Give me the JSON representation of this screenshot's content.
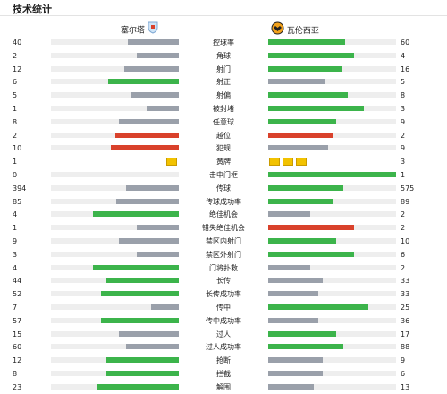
{
  "page": {
    "title": "技术统计"
  },
  "teams": {
    "home": "塞尔塔",
    "away": "瓦伦西亚"
  },
  "colors": {
    "win": "#3cb44b",
    "lose": "#9aa0aa",
    "bad": "#d9412b",
    "yellow": "#f2c200"
  },
  "stats": [
    {
      "label": "控球率",
      "home": 40,
      "away": 60,
      "hf": 0.4,
      "af": 0.6
    },
    {
      "label": "角球",
      "home": 2,
      "away": 4,
      "hf": 0.33,
      "af": 0.67
    },
    {
      "label": "射门",
      "home": 12,
      "away": 16,
      "hf": 0.43,
      "af": 0.57
    },
    {
      "label": "射正",
      "home": 6,
      "away": 5,
      "hf": 0.55,
      "af": 0.45
    },
    {
      "label": "射偏",
      "home": 5,
      "away": 8,
      "hf": 0.38,
      "af": 0.62
    },
    {
      "label": "被封堵",
      "home": 1,
      "away": 3,
      "hf": 0.25,
      "af": 0.75
    },
    {
      "label": "任意球",
      "home": 8,
      "away": 9,
      "hf": 0.47,
      "af": 0.53
    },
    {
      "label": "越位",
      "home": 2,
      "away": 2,
      "hf": 0.5,
      "af": 0.5
    },
    {
      "label": "犯规",
      "home": 10,
      "away": 9,
      "hf": 0.53,
      "af": 0.47
    },
    {
      "label": "黄牌",
      "home": 1,
      "away": 3,
      "cards": true
    },
    {
      "label": "击中门框",
      "home": 0,
      "away": 1,
      "hf": 0,
      "af": 1
    },
    {
      "label": "传球",
      "home": 394,
      "away": 575,
      "hf": 0.41,
      "af": 0.59
    },
    {
      "label": "传球成功率",
      "home": 85,
      "away": 89,
      "hf": 0.49,
      "af": 0.51
    },
    {
      "label": "绝佳机会",
      "home": 4,
      "away": 2,
      "hf": 0.67,
      "af": 0.33
    },
    {
      "label": "错失绝佳机会",
      "home": 1,
      "away": 2,
      "hf": 0.33,
      "af": 0.67
    },
    {
      "label": "禁区内射门",
      "home": 9,
      "away": 10,
      "hf": 0.47,
      "af": 0.53
    },
    {
      "label": "禁区外射门",
      "home": 3,
      "away": 6,
      "hf": 0.33,
      "af": 0.67
    },
    {
      "label": "门将扑救",
      "home": 4,
      "away": 2,
      "hf": 0.67,
      "af": 0.33
    },
    {
      "label": "长传",
      "home": 44,
      "away": 33,
      "hf": 0.57,
      "af": 0.43
    },
    {
      "label": "长传成功率",
      "home": 52,
      "away": 33,
      "hf": 0.61,
      "af": 0.39
    },
    {
      "label": "传中",
      "home": 7,
      "away": 25,
      "hf": 0.22,
      "af": 0.78
    },
    {
      "label": "传中成功率",
      "home": 57,
      "away": 36,
      "hf": 0.61,
      "af": 0.39
    },
    {
      "label": "过人",
      "home": 15,
      "away": 17,
      "hf": 0.47,
      "af": 0.53
    },
    {
      "label": "过人成功率",
      "home": 60,
      "away": 88,
      "hf": 0.41,
      "af": 0.59
    },
    {
      "label": "抢断",
      "home": 12,
      "away": 9,
      "hf": 0.57,
      "af": 0.43
    },
    {
      "label": "拦截",
      "home": 8,
      "away": 6,
      "hf": 0.57,
      "af": 0.43
    },
    {
      "label": "解围",
      "home": 23,
      "away": 13,
      "hf": 0.64,
      "af": 0.36
    }
  ]
}
